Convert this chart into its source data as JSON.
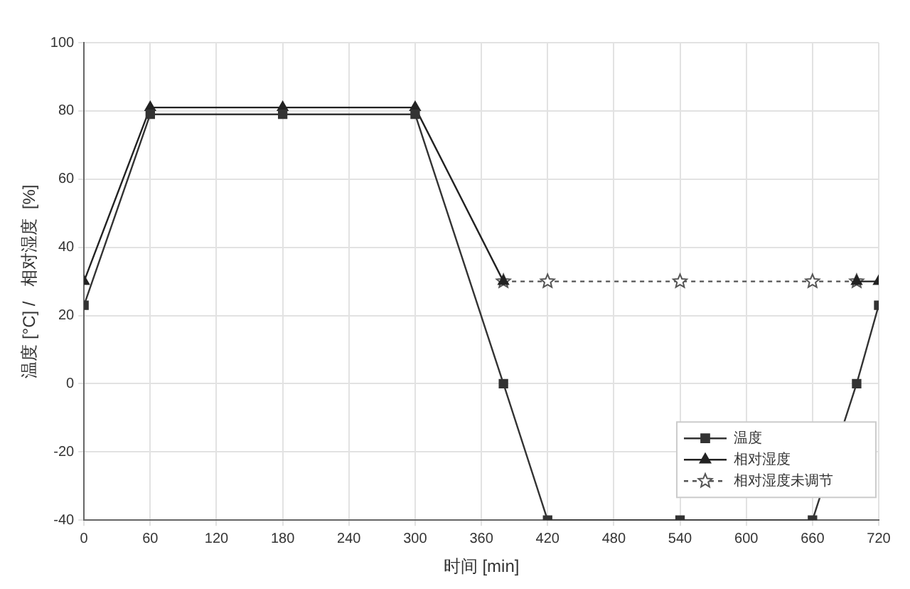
{
  "chart_data": {
    "type": "line",
    "xlabel": "时间 [min]",
    "ylabel": "温度 [°C] /   相对湿度  [%]",
    "xlim": [
      0,
      720
    ],
    "xticks": [
      0,
      60,
      120,
      180,
      240,
      300,
      360,
      420,
      480,
      540,
      600,
      660,
      720
    ],
    "ylim": [
      -40,
      100
    ],
    "yticks": [
      -40,
      -20,
      0,
      20,
      40,
      60,
      80,
      100
    ],
    "grid": true,
    "legend": "bottom right",
    "series": [
      {
        "name": "温度",
        "color": "#333333",
        "marker": "square",
        "line_style": "solid",
        "x": [
          0,
          60,
          180,
          300,
          380,
          420,
          540,
          660,
          700,
          720
        ],
        "values": [
          23,
          79,
          79,
          79,
          0,
          -40,
          -40,
          -40,
          0,
          23
        ]
      },
      {
        "name": "相对湿度",
        "color": "#222222",
        "marker": "triangle",
        "line_style": "solid",
        "x": [
          0,
          60,
          180,
          300,
          380,
          540,
          700,
          720
        ],
        "values": [
          30,
          81,
          81,
          81,
          30,
          null,
          30,
          30
        ]
      },
      {
        "name": "相对湿度未调节",
        "color": "#555555",
        "marker": "star",
        "line_style": "dotted",
        "x": [
          380,
          420,
          540,
          660,
          700
        ],
        "values": [
          30,
          30,
          30,
          30,
          30
        ]
      }
    ]
  }
}
